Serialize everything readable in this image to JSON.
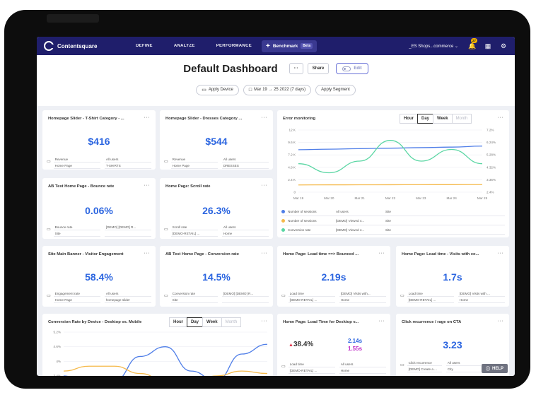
{
  "navbar": {
    "brand": "Contentsquare",
    "items": [
      "DEFINE",
      "ANALYZE",
      "PERFORMANCE"
    ],
    "benchmark_label": "Benchmark",
    "benchmark_badge": "Beta",
    "site_selector": "_ES Shops...commerce",
    "notification_count": "27",
    "icons": [
      "bell-icon",
      "apps-grid-icon",
      "settings-gear-icon"
    ]
  },
  "dashboard": {
    "title": "Default Dashboard",
    "more": "···",
    "share_label": "Share",
    "edit_label": "Edit",
    "apply_device": "Apply Device",
    "date_range": "Mar 19 → 25 2022 (7 days)",
    "apply_segment": "Apply Segment"
  },
  "colors": {
    "accent": "#2b65e0",
    "navbar": "#1f1e6b",
    "blue_line": "#4f7ee8",
    "orange_line": "#f5b94a",
    "green_line": "#5ad6a3",
    "red": "#e0334a",
    "magenta": "#c030c8"
  },
  "cards": {
    "tshirt": {
      "title": "Homepage Slider - T-Shirt Category - ...",
      "value": "$416",
      "meta": [
        "Revenue",
        "All users",
        "Home Page",
        "T-SHIRTS"
      ]
    },
    "dresses": {
      "title": "Homepage Slider - Dresses Category ...",
      "value": "$544",
      "meta": [
        "Revenue",
        "All users",
        "Home Page",
        "DRESSES"
      ]
    },
    "bounce": {
      "title": "AB Test Home Page - Bounce rate",
      "value": "0.06%",
      "meta": [
        "Bounce rate",
        "[DEMO] [DEMO] R...",
        "Site",
        ""
      ]
    },
    "scroll": {
      "title": "Home Page: Scroll rate",
      "value": "26.3%",
      "meta": [
        "Scroll rate",
        "All users",
        "[DEMO-RETAIL] ...",
        "Home"
      ]
    },
    "banner": {
      "title": "Site Main Banner - Visitor Engagement",
      "value": "58.4%",
      "meta": [
        "Engagement rate",
        "All users",
        "Home Page",
        "homepage slider"
      ]
    },
    "conversion": {
      "title": "AB Test Home Page - Conversion rate",
      "value": "14.5%",
      "meta": [
        "Conversion rate",
        "[DEMO] [DEMO] R...",
        "Site",
        ""
      ]
    },
    "loadtime_bounce": {
      "title": "Home Page: Load time ==> Bounced ...",
      "value": "2.19s",
      "meta": [
        "Load time",
        "[DEMO] Visits with...",
        "[DEMO-RETAIL] ...",
        "Home"
      ]
    },
    "loadtime_visits": {
      "title": "Home Page: Load time - Visits with co...",
      "value": "1.7s",
      "meta": [
        "Load time",
        "[DEMO] Visits with ...",
        "[DEMO-RETAIL] ...",
        "Home"
      ]
    },
    "loadtime_desktop": {
      "title": "Home Page: Load Time for Desktop v...",
      "change": "38.4%",
      "value_a": "2.14s",
      "value_b": "1.55s",
      "meta": [
        "Load time",
        "All users",
        "[DEMO-RETAIL] ...",
        "Home"
      ]
    },
    "click_rage": {
      "title": "Click recurrence / rage on CTA",
      "value": "3.23",
      "meta": [
        "Click recurrence",
        "All users",
        "[DEMO] Create a ...",
        "City"
      ]
    },
    "error": {
      "title": "Error monitoring",
      "seg": [
        "Hour",
        "Day",
        "Week",
        "Month"
      ],
      "legend": [
        {
          "metric": "Number of sessions",
          "segment": "All users",
          "scope": "Site"
        },
        {
          "metric": "Number of sessions",
          "segment": "[DEMO] Viewed 4...",
          "scope": "Site"
        },
        {
          "metric": "Conversion rate",
          "segment": "[DEMO] Viewed 4...",
          "scope": "Site"
        }
      ]
    },
    "device": {
      "title": "Conversion Rate by Device - Desktop vs. Mobile",
      "seg": [
        "Hour",
        "Day",
        "Week",
        "Month"
      ]
    }
  },
  "chart_data": [
    {
      "type": "line",
      "title": "Error monitoring",
      "categories": [
        "Mar 19",
        "Mar 20",
        "Mar 21",
        "Mar 22",
        "Mar 23",
        "Mar 24",
        "Mar 25"
      ],
      "y_left_ticks": [
        "0",
        "2.4 K",
        "4.8 K",
        "7.2 K",
        "9.6 K",
        "12 K"
      ],
      "y_right_ticks": [
        "2.4%",
        "3.36%",
        "4.32%",
        "5.28%",
        "6.24%",
        "7.2%"
      ],
      "ylim_left": [
        0,
        12000
      ],
      "ylim_right": [
        2.4,
        7.2
      ],
      "series": [
        {
          "values": [
            8200,
            8300,
            8400,
            8500,
            8600,
            8700,
            8900
          ]
        },
        {
          "values": [
            1400,
            1420,
            1430,
            1440,
            1450,
            1460,
            1470
          ]
        },
        {
          "values": [
            4.6,
            3.9,
            4.8,
            6.4,
            4.8,
            5.7,
            4.6
          ]
        }
      ]
    },
    {
      "type": "line",
      "title": "Conversion Rate by Device - Desktop vs. Mobile",
      "y_ticks": [
        "3.4%",
        "4%",
        "4.6%",
        "5.2%"
      ],
      "ylim": [
        3.4,
        5.2
      ],
      "series": [
        {
          "values": [
            3.4,
            3.0,
            3.2,
            4.2,
            4.6,
            3.6,
            3.2,
            4.3,
            4.7
          ]
        },
        {
          "values": [
            3.6,
            3.8,
            3.8,
            3.5,
            3.2,
            3.1,
            3.4,
            3.6,
            3.5
          ]
        }
      ]
    }
  ],
  "help_label": "HELP"
}
